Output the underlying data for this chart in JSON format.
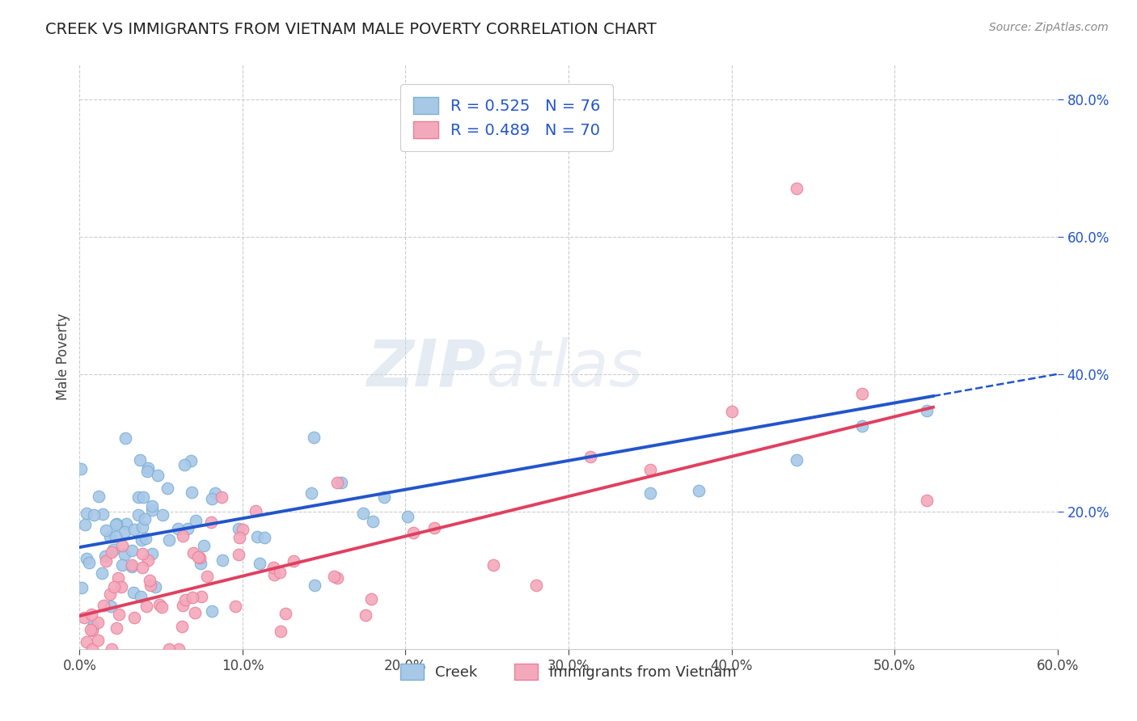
{
  "title": "CREEK VS IMMIGRANTS FROM VIETNAM MALE POVERTY CORRELATION CHART",
  "source_text": "Source: ZipAtlas.com",
  "ylabel": "Male Poverty",
  "xlim": [
    0.0,
    0.6
  ],
  "ylim": [
    0.0,
    0.85
  ],
  "xtick_labels": [
    "0.0%",
    "10.0%",
    "20.0%",
    "30.0%",
    "40.0%",
    "50.0%",
    "60.0%"
  ],
  "xtick_vals": [
    0.0,
    0.1,
    0.2,
    0.3,
    0.4,
    0.5,
    0.6
  ],
  "ytick_labels": [
    "20.0%",
    "40.0%",
    "60.0%",
    "80.0%"
  ],
  "ytick_vals": [
    0.2,
    0.4,
    0.6,
    0.8
  ],
  "creek_color": "#a8c8e8",
  "vietnam_color": "#f4a8bc",
  "creek_edge_color": "#7bafd4",
  "vietnam_edge_color": "#e88098",
  "creek_line_color": "#2255cc",
  "vietnam_line_color": "#e04060",
  "creek_R": 0.525,
  "creek_N": 76,
  "vietnam_R": 0.489,
  "vietnam_N": 70,
  "creek_intercept": 0.148,
  "creek_slope": 0.42,
  "vietnam_intercept": 0.048,
  "vietnam_slope": 0.58,
  "watermark": "ZIPatlas",
  "legend_label_creek": "Creek",
  "legend_label_vietnam": "Immigrants from Vietnam",
  "title_fontsize": 14,
  "axis_color": "#2255cc",
  "tick_label_color_x": "#2255cc",
  "grid_color": "#cccccc",
  "background_color": "#ffffff"
}
